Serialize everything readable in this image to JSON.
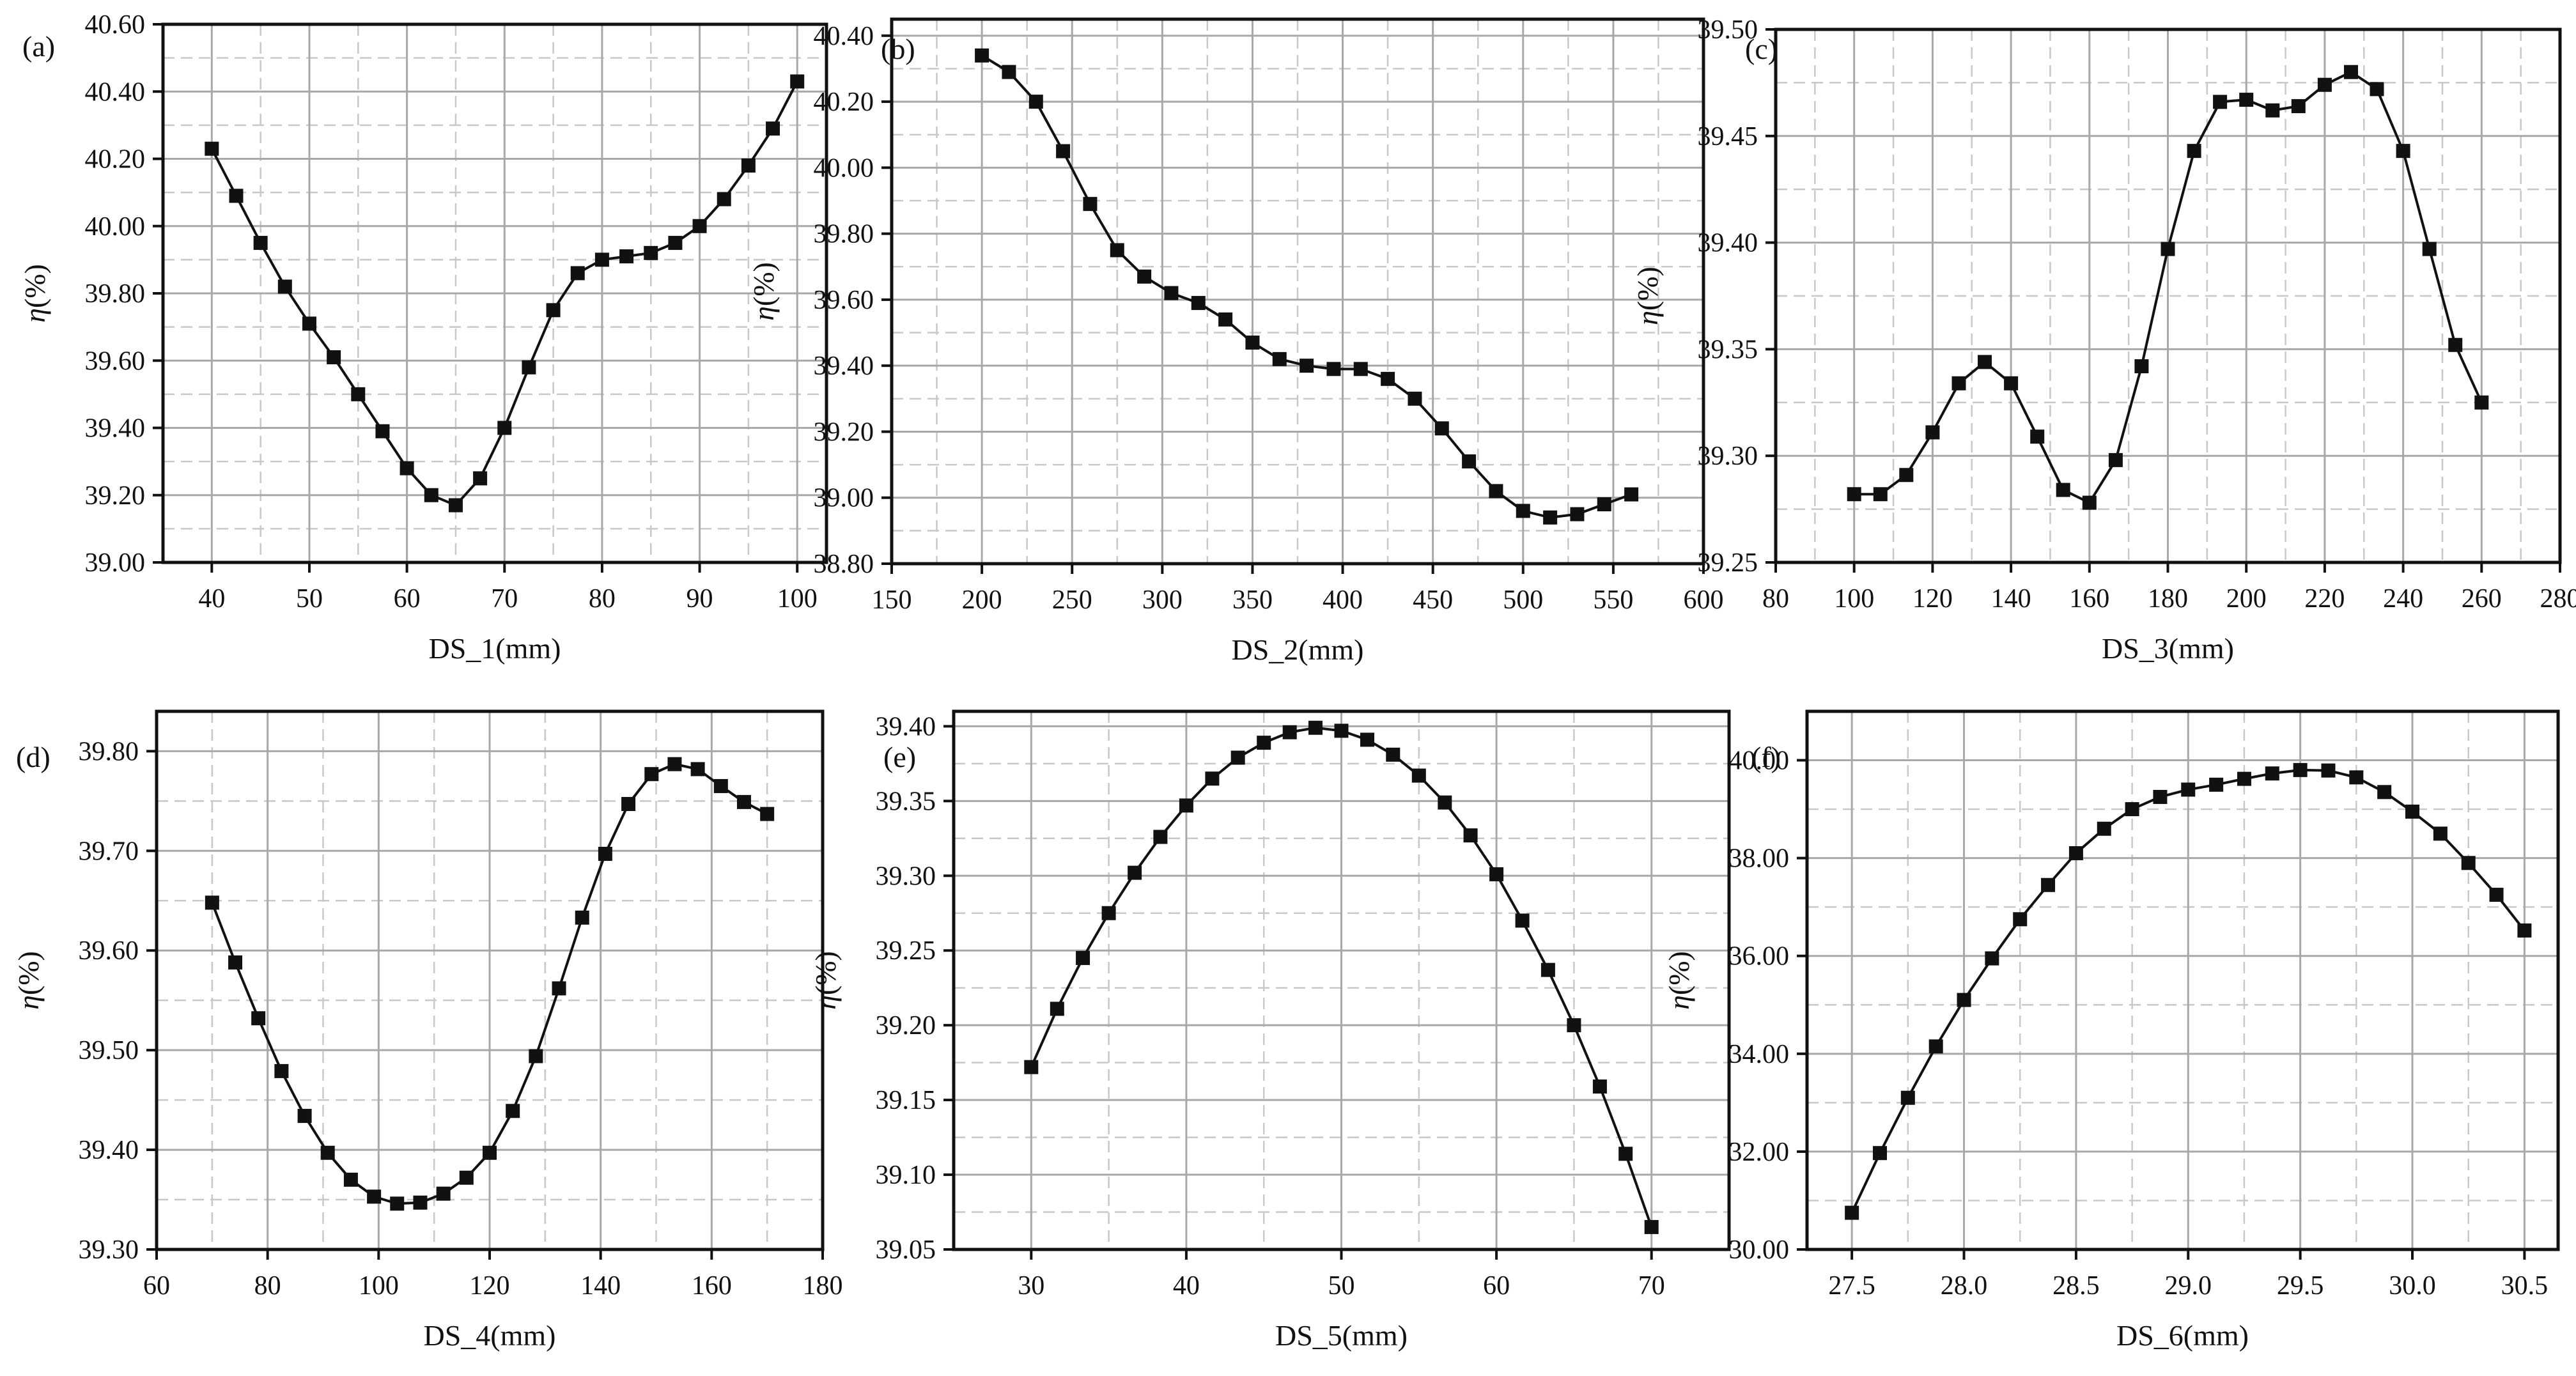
{
  "figure": {
    "ylabel_symbol": "η",
    "ylabel_unit": "(%)"
  },
  "chart_data": [
    {
      "panel_label": "(a)",
      "type": "line",
      "marker": "square",
      "xlabel": "DS_1(mm)",
      "ylabel": "η(%)",
      "xlim": [
        35,
        103
      ],
      "ylim": [
        39.0,
        40.6
      ],
      "xticks": [
        40,
        50,
        60,
        70,
        80,
        90,
        100
      ],
      "xticklabels": [
        "40",
        "50",
        "60",
        "70",
        "80",
        "90",
        "100"
      ],
      "yticks": [
        39.0,
        39.2,
        39.4,
        39.6,
        39.8,
        40.0,
        40.2,
        40.4,
        40.6
      ],
      "yticklabels": [
        "39.00",
        "39.20",
        "39.40",
        "39.60",
        "39.80",
        "40.00",
        "40.20",
        "40.40",
        "40.60"
      ],
      "x": [
        40,
        42.5,
        45,
        47.5,
        50,
        52.5,
        55,
        57.5,
        60,
        62.5,
        65,
        67.5,
        70,
        72.5,
        75,
        77.5,
        80,
        82.5,
        85,
        87.5,
        90,
        92.5,
        95,
        97.5,
        100
      ],
      "y": [
        40.23,
        40.09,
        39.95,
        39.82,
        39.71,
        39.61,
        39.5,
        39.39,
        39.28,
        39.2,
        39.17,
        39.25,
        39.4,
        39.58,
        39.75,
        39.86,
        39.9,
        39.91,
        39.92,
        39.95,
        40.0,
        40.08,
        40.18,
        40.29,
        40.43
      ]
    },
    {
      "panel_label": "(b)",
      "type": "line",
      "marker": "square",
      "xlabel": "DS_2(mm)",
      "ylabel": "η(%)",
      "xlim": [
        150,
        600
      ],
      "ylim": [
        38.8,
        40.45
      ],
      "xticks": [
        150,
        200,
        250,
        300,
        350,
        400,
        450,
        500,
        550,
        600
      ],
      "xticklabels": [
        "150",
        "200",
        "250",
        "300",
        "350",
        "400",
        "450",
        "500",
        "550",
        "600"
      ],
      "yticks": [
        38.8,
        39.0,
        39.2,
        39.4,
        39.6,
        39.8,
        40.0,
        40.2,
        40.4
      ],
      "yticklabels": [
        "38.80",
        "39.00",
        "39.20",
        "39.40",
        "39.60",
        "39.80",
        "40.00",
        "40.20",
        "40.40"
      ],
      "x": [
        200,
        215,
        230,
        245,
        260,
        275,
        290,
        305,
        320,
        335,
        350,
        365,
        380,
        395,
        410,
        425,
        440,
        455,
        470,
        485,
        500,
        515,
        530,
        545,
        560
      ],
      "y": [
        40.34,
        40.29,
        40.2,
        40.05,
        39.89,
        39.75,
        39.67,
        39.62,
        39.59,
        39.54,
        39.47,
        39.42,
        39.4,
        39.39,
        39.39,
        39.36,
        39.3,
        39.21,
        39.11,
        39.02,
        38.96,
        38.94,
        38.95,
        38.98,
        39.01
      ]
    },
    {
      "panel_label": "(c)",
      "type": "line",
      "marker": "square",
      "xlabel": "DS_3(mm)",
      "ylabel": "η(%)",
      "xlim": [
        80,
        280
      ],
      "ylim": [
        39.25,
        39.5
      ],
      "xticks": [
        80,
        100,
        120,
        140,
        160,
        180,
        200,
        220,
        240,
        260,
        280
      ],
      "xticklabels": [
        "80",
        "100",
        "120",
        "140",
        "160",
        "180",
        "200",
        "220",
        "240",
        "260",
        "280"
      ],
      "yticks": [
        39.25,
        39.3,
        39.35,
        39.4,
        39.45,
        39.5
      ],
      "yticklabels": [
        "39.25",
        "39.30",
        "39.35",
        "39.40",
        "39.45",
        "39.50"
      ],
      "x": [
        100,
        106.7,
        113.3,
        120,
        126.7,
        133.3,
        140,
        146.7,
        153.3,
        160,
        166.7,
        173.3,
        180,
        186.7,
        193.3,
        200,
        206.7,
        213.3,
        220,
        226.7,
        233.3,
        240,
        246.7,
        253.3,
        260
      ],
      "y": [
        39.282,
        39.282,
        39.291,
        39.311,
        39.334,
        39.344,
        39.334,
        39.309,
        39.284,
        39.278,
        39.298,
        39.342,
        39.397,
        39.443,
        39.466,
        39.467,
        39.462,
        39.464,
        39.474,
        39.48,
        39.472,
        39.443,
        39.397,
        39.352,
        39.325
      ]
    },
    {
      "panel_label": "(d)",
      "type": "line",
      "marker": "square",
      "xlabel": "DS_4(mm)",
      "ylabel": "η(%)",
      "xlim": [
        60,
        180
      ],
      "ylim": [
        39.3,
        39.84
      ],
      "xticks": [
        60,
        80,
        100,
        120,
        140,
        160,
        180
      ],
      "xticklabels": [
        "60",
        "80",
        "100",
        "120",
        "140",
        "160",
        "180"
      ],
      "yticks": [
        39.3,
        39.4,
        39.5,
        39.6,
        39.7,
        39.8
      ],
      "yticklabels": [
        "39.30",
        "39.40",
        "39.50",
        "39.60",
        "39.70",
        "39.80"
      ],
      "x": [
        70,
        74.17,
        78.33,
        82.5,
        86.67,
        90.83,
        95,
        99.17,
        103.33,
        107.5,
        111.67,
        115.83,
        120,
        124.17,
        128.33,
        132.5,
        136.67,
        140.83,
        145,
        149.17,
        153.33,
        157.5,
        161.67,
        165.83,
        170
      ],
      "y": [
        39.648,
        39.588,
        39.532,
        39.479,
        39.434,
        39.397,
        39.37,
        39.353,
        39.346,
        39.347,
        39.356,
        39.372,
        39.397,
        39.439,
        39.494,
        39.562,
        39.633,
        39.697,
        39.747,
        39.777,
        39.787,
        39.782,
        39.765,
        39.749,
        39.737
      ]
    },
    {
      "panel_label": "(e)",
      "type": "line",
      "marker": "square",
      "xlabel": "DS_5(mm)",
      "ylabel": "η(%)",
      "xlim": [
        25,
        75
      ],
      "ylim": [
        39.05,
        39.41
      ],
      "xticks": [
        30,
        40,
        50,
        60,
        70
      ],
      "xticklabels": [
        "30",
        "40",
        "50",
        "60",
        "70"
      ],
      "yticks": [
        39.05,
        39.1,
        39.15,
        39.2,
        39.25,
        39.3,
        39.35,
        39.4
      ],
      "yticklabels": [
        "39.05",
        "39.10",
        "39.15",
        "39.20",
        "39.25",
        "39.30",
        "39.35",
        "39.40"
      ],
      "x": [
        30,
        31.67,
        33.33,
        35,
        36.67,
        38.33,
        40,
        41.67,
        43.33,
        45,
        46.67,
        48.33,
        50,
        51.67,
        53.33,
        55,
        56.67,
        58.33,
        60,
        61.67,
        63.33,
        65,
        66.67,
        68.33,
        70
      ],
      "y": [
        39.172,
        39.211,
        39.245,
        39.275,
        39.302,
        39.326,
        39.347,
        39.365,
        39.379,
        39.389,
        39.396,
        39.399,
        39.397,
        39.391,
        39.381,
        39.367,
        39.349,
        39.327,
        39.301,
        39.27,
        39.237,
        39.2,
        39.159,
        39.114,
        39.065
      ]
    },
    {
      "panel_label": "(f)",
      "type": "line",
      "marker": "square",
      "xlabel": "DS_6(mm)",
      "ylabel": "η(%)",
      "xlim": [
        27.3,
        30.65
      ],
      "ylim": [
        30.0,
        41.0
      ],
      "xticks": [
        27.5,
        28.0,
        28.5,
        29.0,
        29.5,
        30.0,
        30.5
      ],
      "xticklabels": [
        "27.5",
        "28.0",
        "28.5",
        "29.0",
        "29.5",
        "30.0",
        "30.5"
      ],
      "yticks": [
        30.0,
        32.0,
        34.0,
        36.0,
        38.0,
        40.0
      ],
      "yticklabels": [
        "30.00",
        "32.00",
        "34.00",
        "36.00",
        "38.00",
        "40.00"
      ],
      "x": [
        27.5,
        27.625,
        27.75,
        27.875,
        28.0,
        28.125,
        28.25,
        28.375,
        28.5,
        28.625,
        28.75,
        28.875,
        29.0,
        29.125,
        29.25,
        29.375,
        29.5,
        29.625,
        29.75,
        29.875,
        30.0,
        30.125,
        30.25,
        30.375,
        30.5
      ],
      "y": [
        30.75,
        31.97,
        33.1,
        34.15,
        35.1,
        35.95,
        36.75,
        37.45,
        38.1,
        38.6,
        39.0,
        39.25,
        39.4,
        39.5,
        39.62,
        39.73,
        39.8,
        39.79,
        39.65,
        39.35,
        38.95,
        38.5,
        37.9,
        37.25,
        36.52
      ]
    }
  ]
}
